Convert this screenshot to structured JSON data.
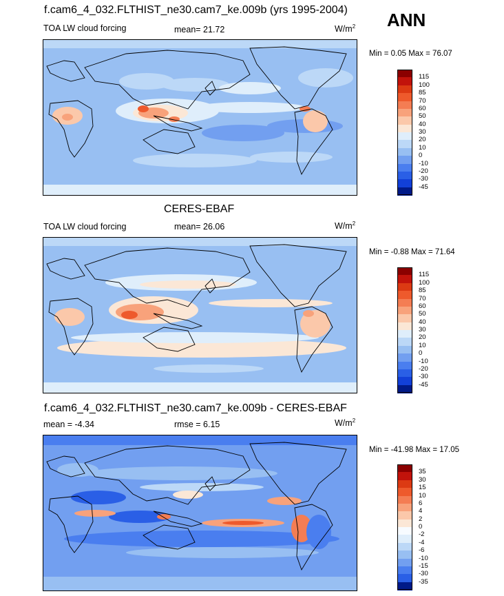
{
  "season": "ANN",
  "panels": [
    {
      "title": "f.cam6_4_032.FLTHIST_ne30.cam7_ke.009b (yrs 1995-2004)",
      "left_label": "TOA LW cloud forcing",
      "center_label": "mean=  21.72",
      "units_main": "W/m",
      "units_sup": "2",
      "minmax": "Min =   0.05 Max =  76.07"
    },
    {
      "title": "CERES-EBAF",
      "left_label": "TOA LW cloud forcing",
      "center_label": "mean=  26.06",
      "units_main": "W/m",
      "units_sup": "2",
      "minmax": "Min =  -0.88 Max =  71.64"
    },
    {
      "title": "f.cam6_4_032.FLTHIST_ne30.cam7_ke.009b - CERES-EBAF",
      "left_label": "mean =  -4.34",
      "center_label": "rmse =   6.15",
      "units_main": "W/m",
      "units_sup": "2",
      "minmax": "Min = -41.98 Max =  17.05"
    }
  ],
  "colorbars": {
    "field_levels": [
      "115",
      "100",
      "85",
      "70",
      "60",
      "50",
      "40",
      "30",
      "20",
      "10",
      "0",
      "-10",
      "-20",
      "-30",
      "-45"
    ],
    "diff_levels": [
      "35",
      "30",
      "15",
      "10",
      "6",
      "4",
      "2",
      "0",
      "-2",
      "-4",
      "-6",
      "-10",
      "-15",
      "-30",
      "-35"
    ],
    "field_colors": [
      "#8b0000",
      "#c2130b",
      "#dc3a13",
      "#ee5a2c",
      "#f47d53",
      "#f8a27b",
      "#fbc8aa",
      "#fbe7d6",
      "#dfeefb",
      "#bcd8f7",
      "#98bff2",
      "#729ff0",
      "#4a7eef",
      "#2a5fe6",
      "#1240d8",
      "#001a88"
    ],
    "diff_colors": [
      "#8b0000",
      "#c2130b",
      "#dc3a13",
      "#ee5a2c",
      "#f47d53",
      "#f8a27b",
      "#fbc8aa",
      "#fbe7d6",
      "#f7fbff",
      "#dfeefb",
      "#bcd8f7",
      "#98bff2",
      "#729ff0",
      "#4a7eef",
      "#2a5fe6",
      "#001a88"
    ]
  },
  "chart_data": [
    {
      "type": "heatmap",
      "title": "f.cam6_4_032.FLTHIST_ne30.cam7_ke.009b (yrs 1995-2004)",
      "variable": "TOA LW cloud forcing",
      "units": "W/m2",
      "mean": 21.72,
      "min": 0.05,
      "max": 76.07,
      "levels": [
        -45,
        -30,
        -20,
        -10,
        0,
        10,
        20,
        30,
        40,
        50,
        60,
        70,
        85,
        100,
        115
      ]
    },
    {
      "type": "heatmap",
      "title": "CERES-EBAF",
      "variable": "TOA LW cloud forcing",
      "units": "W/m2",
      "mean": 26.06,
      "min": -0.88,
      "max": 71.64,
      "levels": [
        -45,
        -30,
        -20,
        -10,
        0,
        10,
        20,
        30,
        40,
        50,
        60,
        70,
        85,
        100,
        115
      ]
    },
    {
      "type": "heatmap",
      "title": "f.cam6_4_032.FLTHIST_ne30.cam7_ke.009b - CERES-EBAF",
      "units": "W/m2",
      "mean": -4.34,
      "rmse": 6.15,
      "min": -41.98,
      "max": 17.05,
      "levels": [
        -35,
        -30,
        -15,
        -10,
        -6,
        -4,
        -2,
        0,
        2,
        4,
        6,
        10,
        15,
        30,
        35
      ]
    }
  ]
}
